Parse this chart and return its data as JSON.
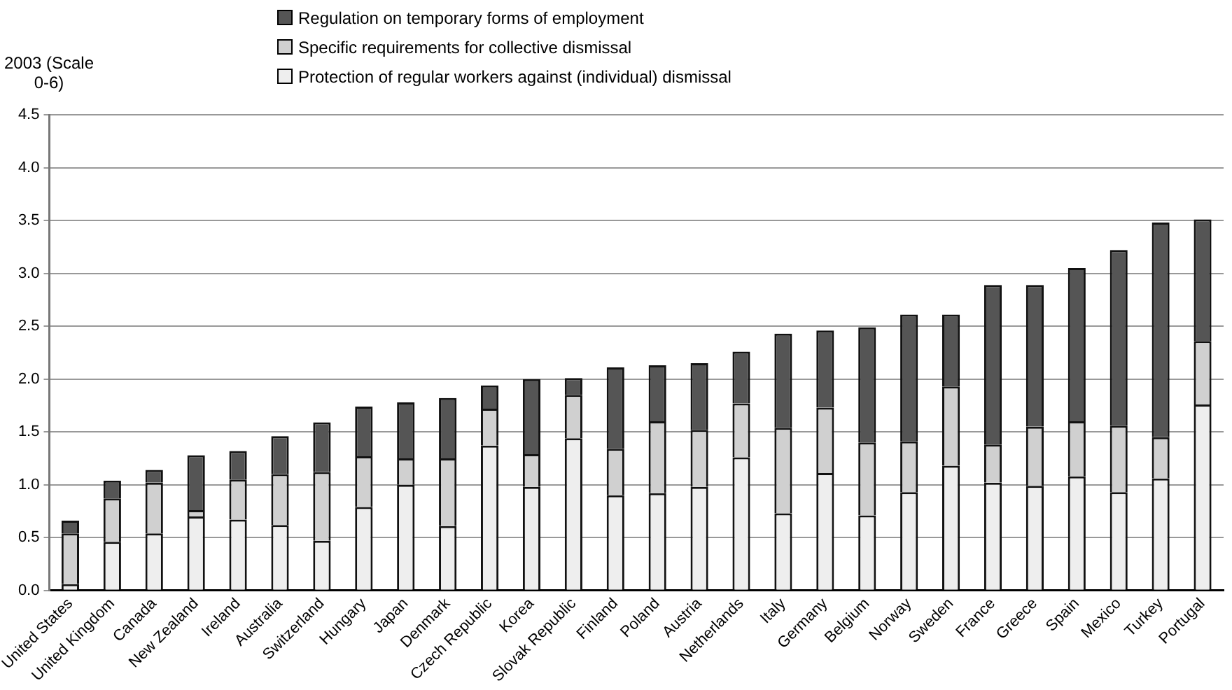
{
  "chart_data": {
    "type": "bar",
    "stacked": true,
    "ylabel": "2003 (Scale 0-6)",
    "categories": [
      "United States",
      "United Kingdom",
      "Canada",
      "New Zealand",
      "Ireland",
      "Australia",
      "Switzerland",
      "Hungary",
      "Japan",
      "Denmark",
      "Czech Republic",
      "Korea",
      "Slovak Republic",
      "Finland",
      "Poland",
      "Austria",
      "Netherlands",
      "Italy",
      "Germany",
      "Belgium",
      "Norway",
      "Sweden",
      "France",
      "Greece",
      "Spain",
      "Mexico",
      "Turkey",
      "Portugal"
    ],
    "series": [
      {
        "name": "Protection of regular workers against (individual) dismissal",
        "color": "#eeeeee",
        "values": [
          0.06,
          0.46,
          0.54,
          0.7,
          0.67,
          0.62,
          0.47,
          0.79,
          1.0,
          0.61,
          1.37,
          0.98,
          1.44,
          0.9,
          0.92,
          0.98,
          1.26,
          0.73,
          1.11,
          0.71,
          0.93,
          1.18,
          1.02,
          0.99,
          1.08,
          0.93,
          1.06,
          1.76
        ]
      },
      {
        "name": "Specific requirements for collective dismissal",
        "color": "#d0d0d0",
        "values": [
          0.48,
          0.41,
          0.48,
          0.06,
          0.38,
          0.48,
          0.65,
          0.48,
          0.25,
          0.64,
          0.35,
          0.31,
          0.41,
          0.44,
          0.68,
          0.54,
          0.51,
          0.81,
          0.62,
          0.69,
          0.48,
          0.75,
          0.36,
          0.56,
          0.52,
          0.63,
          0.39,
          0.6
        ]
      },
      {
        "name": "Regulation on temporary forms of employment",
        "color": "#555555",
        "values": [
          0.12,
          0.17,
          0.12,
          0.52,
          0.27,
          0.36,
          0.47,
          0.47,
          0.53,
          0.57,
          0.22,
          0.71,
          0.16,
          0.77,
          0.53,
          0.63,
          0.49,
          0.89,
          0.73,
          1.09,
          1.2,
          0.68,
          1.51,
          1.34,
          1.45,
          1.66,
          2.03,
          1.15
        ]
      }
    ],
    "ylim": [
      0,
      4.5
    ],
    "yticks": [
      {
        "value": 0,
        "label": "0.0"
      },
      {
        "value": 0.5,
        "label": "0.5"
      },
      {
        "value": 1,
        "label": "1.0"
      },
      {
        "value": 1.5,
        "label": "1.5"
      },
      {
        "value": 2,
        "label": "2.0"
      },
      {
        "value": 2.5,
        "label": "2.5"
      },
      {
        "value": 3,
        "label": "3.0"
      },
      {
        "value": 3.5,
        "label": "3.5"
      },
      {
        "value": 4,
        "label": "4.0"
      },
      {
        "value": 4.5,
        "label": "4.5"
      }
    ],
    "grid": "y",
    "legend": "top"
  }
}
